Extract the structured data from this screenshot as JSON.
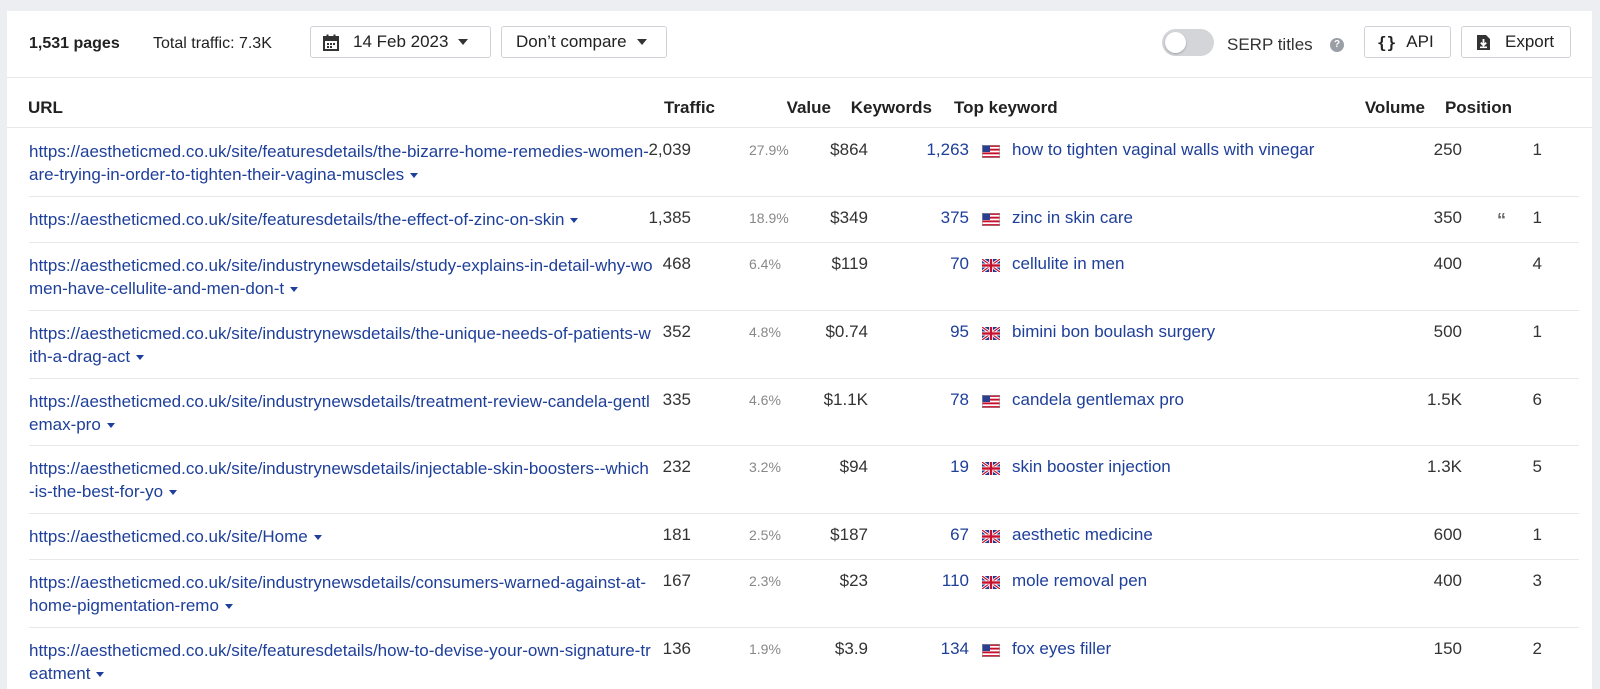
{
  "toolbar": {
    "pages": "1,531 pages",
    "total_traffic": "Total traffic: 7.3K",
    "date": "14 Feb 2023",
    "compare": "Don’t compare",
    "serp_titles": "SERP titles",
    "serp_titles_enabled": false,
    "api": "API",
    "export": "Export"
  },
  "columns": {
    "url": "URL",
    "traffic": "Traffic",
    "value": "Value",
    "keywords": "Keywords",
    "top_keyword": "Top keyword",
    "volume": "Volume",
    "position": "Position"
  },
  "rows": [
    {
      "url": "https://aestheticmed.co.uk/site/featuresdetails/the-bizarre-home-remedies-women-are-trying-in-order-to-tighten-their-vagina-muscles",
      "traffic": "2,039",
      "traffic_pct": "27.9%",
      "value": "$864",
      "keywords": "1,263",
      "flag": "us",
      "top_keyword": "how to tighten vaginal walls with vinegar",
      "volume": "250",
      "position": "1"
    },
    {
      "url": "https://aestheticmed.co.uk/site/featuresdetails/the-effect-of-zinc-on-skin",
      "traffic": "1,385",
      "traffic_pct": "18.9%",
      "value": "$349",
      "keywords": "375",
      "flag": "us",
      "top_keyword": "zinc in skin care",
      "volume": "350",
      "position": "1",
      "serp_feature_icon": "quote-icon"
    },
    {
      "url": "https://aestheticmed.co.uk/site/industrynewsdetails/study-explains-in-detail-why-women-have-cellulite-and-men-don-t",
      "traffic": "468",
      "traffic_pct": "6.4%",
      "value": "$119",
      "keywords": "70",
      "flag": "gb",
      "top_keyword": "cellulite in men",
      "volume": "400",
      "position": "4"
    },
    {
      "url": "https://aestheticmed.co.uk/site/industrynewsdetails/the-unique-needs-of-patients-with-a-drag-act",
      "traffic": "352",
      "traffic_pct": "4.8%",
      "value": "$0.74",
      "keywords": "95",
      "flag": "gb",
      "top_keyword": "bimini bon boulash surgery",
      "volume": "500",
      "position": "1"
    },
    {
      "url": "https://aestheticmed.co.uk/site/industrynewsdetails/treatment-review-candela-gentlemax-pro",
      "traffic": "335",
      "traffic_pct": "4.6%",
      "value": "$1.1K",
      "keywords": "78",
      "flag": "us",
      "top_keyword": "candela gentlemax pro",
      "volume": "1.5K",
      "position": "6"
    },
    {
      "url": "https://aestheticmed.co.uk/site/industrynewsdetails/injectable-skin-boosters--which-is-the-best-for-yo",
      "traffic": "232",
      "traffic_pct": "3.2%",
      "value": "$94",
      "keywords": "19",
      "flag": "gb",
      "top_keyword": "skin booster injection",
      "volume": "1.3K",
      "position": "5"
    },
    {
      "url": "https://aestheticmed.co.uk/site/Home",
      "traffic": "181",
      "traffic_pct": "2.5%",
      "value": "$187",
      "keywords": "67",
      "flag": "gb",
      "top_keyword": "aesthetic medicine",
      "volume": "600",
      "position": "1"
    },
    {
      "url": "https://aestheticmed.co.uk/site/industrynewsdetails/consumers-warned-against-at-home-pigmentation-remo",
      "traffic": "167",
      "traffic_pct": "2.3%",
      "value": "$23",
      "keywords": "110",
      "flag": "gb",
      "top_keyword": "mole removal pen",
      "volume": "400",
      "position": "3"
    },
    {
      "url": "https://aestheticmed.co.uk/site/featuresdetails/how-to-devise-your-own-signature-treatment",
      "traffic": "136",
      "traffic_pct": "1.9%",
      "value": "$3.9",
      "keywords": "134",
      "flag": "us",
      "top_keyword": "fox eyes filler",
      "volume": "150",
      "position": "2"
    }
  ]
}
